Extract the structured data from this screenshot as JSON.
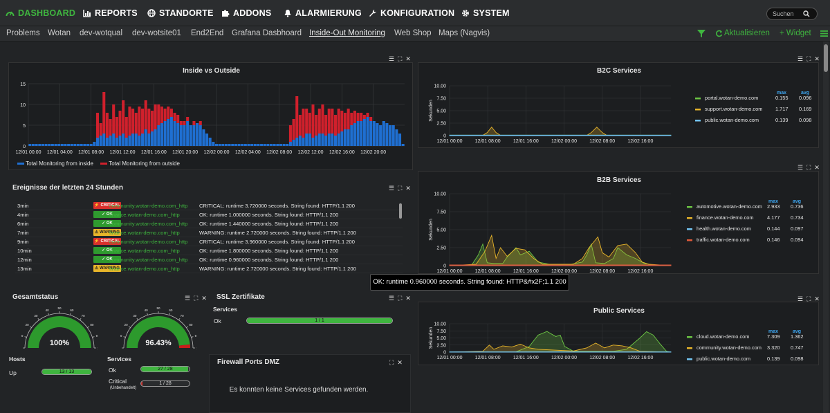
{
  "nav": {
    "items": [
      {
        "label": "DASHBOARD",
        "icon": "gauge-icon"
      },
      {
        "label": "REPORTS",
        "icon": "report-icon"
      },
      {
        "label": "STANDORTE",
        "icon": "globe-icon"
      },
      {
        "label": "ADDONS",
        "icon": "puzzle-icon"
      },
      {
        "label": "ALARMIERUNG",
        "icon": "bell-icon"
      },
      {
        "label": "KONFIGURATION",
        "icon": "wrench-icon"
      },
      {
        "label": "SYSTEM",
        "icon": "gear-icon"
      }
    ],
    "search_placeholder": "Suchen"
  },
  "subnav": {
    "tabs": [
      "Problems",
      "Wotan",
      "dev-wotqual",
      "dev-wotsite01",
      "End2End",
      "Grafana Dasbhoard",
      "Inside-Out Monitoring",
      "Web Shop",
      "Maps (Nagvis)"
    ],
    "active": "Inside-Out Monitoring",
    "refresh": "Aktualisieren",
    "widget": "+ Widget"
  },
  "inside_outside": {
    "title": "Inside vs Outside",
    "legend": [
      "Total Monitoring from inside",
      "Total Monitoring from outside"
    ],
    "colors": {
      "inside": "#1f6fd1",
      "outside": "#d0202c"
    }
  },
  "events": {
    "title": "Ereignisse der letzten 24 Stunden",
    "rows": [
      {
        "time": "3min",
        "state": "CRITICAL",
        "host": "community.wotan-demo.com_http",
        "msg": "CRITICAL: runtime 3.720000 seconds. String found: HTTP/1.1 200"
      },
      {
        "time": "4min",
        "state": "OK",
        "host": "finance.wotan-demo.com_http",
        "msg": "OK: runtime 1.000000 seconds. String found: HTTP/1.1 200"
      },
      {
        "time": "6min",
        "state": "OK",
        "host": "community.wotan-demo.com_http",
        "msg": "OK: runtime 1.440000 seconds. String found: HTTP/1.1 200"
      },
      {
        "time": "7min",
        "state": "WARNING",
        "host": "finance.wotan-demo.com_http",
        "msg": "WARNING: runtime 2.720000 seconds. String found: HTTP/1.1 200"
      },
      {
        "time": "9min",
        "state": "CRITICAL",
        "host": "community.wotan-demo.com_http",
        "msg": "CRITICAL: runtime 3.960000 seconds. String found: HTTP/1.1 200"
      },
      {
        "time": "10min",
        "state": "OK",
        "host": "finance.wotan-demo.com_http",
        "msg": "OK: runtime 1.800000 seconds. String found: HTTP/1.1 200"
      },
      {
        "time": "12min",
        "state": "OK",
        "host": "community.wotan-demo.com_http",
        "msg": "OK: runtime 0.960000 seconds. String found: HTTP/1.1 200"
      },
      {
        "time": "13min",
        "state": "WARNING",
        "host": "finance.wotan-demo.com_http",
        "msg": "WARNING: runtime 2.720000 seconds. String found: HTTP/1.1 200"
      }
    ],
    "tooltip": "OK: runtime 0.960000 seconds. String found: HTTP&#x2F;1.1 200"
  },
  "gesamtstatus": {
    "title": "Gesamtstatus",
    "hosts_gauge": {
      "value_label": "100%",
      "value": 100,
      "ticks": [
        "0",
        "10",
        "20",
        "30",
        "40",
        "50",
        "60",
        "70",
        "80",
        "90",
        "100"
      ]
    },
    "services_gauge": {
      "value_label": "96.43%",
      "value": 96.43,
      "ticks": [
        "0",
        "10",
        "20",
        "30",
        "40",
        "50",
        "60",
        "70",
        "80",
        "90",
        "100"
      ]
    },
    "hosts": {
      "heading": "Hosts",
      "up_label": "Up",
      "up_value": "13 / 13",
      "up_fraction": 1.0
    },
    "services": {
      "heading": "Services",
      "ok_label": "Ok",
      "ok_value": "27 / 28",
      "ok_fraction": 0.9643,
      "critical_label": "Critical",
      "critical_sub": "(Unbehandelt)",
      "critical_value": "1 / 28",
      "critical_fraction": 0.0357
    }
  },
  "ssl": {
    "title": "SSL Zertifikate",
    "heading": "Services",
    "ok_label": "Ok",
    "ok_value": "1 / 1",
    "ok_fraction": 1.0
  },
  "firewall": {
    "title": "Firewall Ports DMZ",
    "message": "Es konnten keine Services gefunden werden."
  },
  "chart_data": [
    {
      "type": "bar",
      "title": "Inside vs Outside",
      "ylim": [
        0,
        15
      ],
      "yticks": [
        "0",
        "5",
        "10",
        "15"
      ],
      "xticks": [
        "12/01 00:00",
        "12/01 04:00",
        "12/01 08:00",
        "12/01 12:00",
        "12/01 16:00",
        "12/01 20:00",
        "12/02 00:00",
        "12/02 04:00",
        "12/02 08:00",
        "12/02 12:00",
        "12/02 16:00",
        "12/02 20:00"
      ],
      "series": [
        {
          "name": "Total Monitoring from inside",
          "values": [
            0.5,
            0.5,
            0.5,
            0.5,
            0.5,
            0.5,
            0.5,
            0.5,
            0.5,
            0.5,
            0.5,
            0.5,
            0.5,
            0.5,
            0.5,
            0.5,
            0.5,
            0.5,
            0.5,
            0.5,
            1,
            2,
            2.5,
            3,
            2,
            2.5,
            3,
            2,
            2.5,
            3,
            2,
            2.5,
            3,
            3,
            2.5,
            3,
            4,
            3,
            3.5,
            4,
            5,
            5.5,
            6,
            6.5,
            7,
            6,
            5.5,
            5,
            5,
            6,
            5,
            5,
            5.5,
            5,
            4,
            3,
            2,
            1,
            0.5,
            0.5,
            0.5,
            0.5,
            0.5,
            0.5,
            0.5,
            0.5,
            0.5,
            0.5,
            0.5,
            0.5,
            0.5,
            0.5,
            0.5,
            0.5,
            0.5,
            0.5,
            0.5,
            0.5,
            0.5,
            0.5,
            0.5,
            1,
            1.5,
            2,
            2.5,
            2,
            3,
            3,
            2,
            2.5,
            3,
            3,
            2.5,
            3,
            3,
            2.5,
            3,
            3.5,
            4,
            4,
            5,
            5.5,
            6,
            6,
            6.5,
            7,
            6,
            6,
            5.5,
            5,
            6,
            5.5,
            5,
            5,
            4,
            3,
            0.5
          ]
        },
        {
          "name": "Total Monitoring from outside",
          "values": [
            0,
            0,
            0,
            0,
            0,
            0,
            0,
            0,
            0,
            0,
            0,
            0,
            0,
            0,
            0,
            0,
            0,
            0,
            0,
            0,
            0,
            6,
            3,
            10,
            6,
            4,
            7,
            5,
            6,
            8,
            5,
            7,
            6,
            5,
            7,
            6,
            7,
            6,
            5,
            6,
            5,
            4,
            3,
            3,
            2,
            2,
            2,
            1,
            1,
            1,
            0,
            1,
            0,
            1,
            0,
            0,
            0,
            0,
            0,
            0,
            0,
            0,
            0,
            0,
            0,
            0,
            0,
            0,
            0,
            0,
            0,
            0,
            0,
            0,
            0,
            0,
            0,
            0,
            0,
            0,
            0,
            4,
            5,
            10,
            5,
            7,
            6,
            5,
            8,
            5,
            6,
            7,
            5,
            6,
            6,
            5,
            6,
            5,
            4,
            5,
            3,
            3,
            2,
            2,
            1,
            1,
            1,
            0,
            0,
            0,
            0,
            0,
            0,
            0,
            0,
            0
          ]
        }
      ]
    },
    {
      "type": "line",
      "title": "B2C Services",
      "ylabel": "Sekunden",
      "ylim": [
        0,
        10
      ],
      "yticks": [
        "0",
        "2.50",
        "5.00",
        "7.50",
        "10.00"
      ],
      "xticks": [
        "12/01 00:00",
        "12/01 08:00",
        "12/01 16:00",
        "12/02 00:00",
        "12/02 08:00",
        "12/02 16:00"
      ],
      "legend_headers": [
        "max",
        "avg"
      ],
      "series": [
        {
          "name": "portal.wotan-demo.com",
          "color": "#6cc644",
          "max": "0.155",
          "avg": "0.096",
          "spikes": []
        },
        {
          "name": "support.wotan-demo.com",
          "color": "#e8b52a",
          "max": "1.717",
          "avg": "0.169",
          "spikes": [
            [
              0.18,
              1.7
            ],
            [
              0.66,
              1.7
            ]
          ]
        },
        {
          "name": "public.wotan-demo.com",
          "color": "#73c4f0",
          "max": "0.139",
          "avg": "0.098",
          "spikes": []
        }
      ]
    },
    {
      "type": "line",
      "title": "B2B Services",
      "ylabel": "Sekunden",
      "ylim": [
        0,
        10
      ],
      "yticks": [
        "0",
        "2.50",
        "5.00",
        "7.50",
        "10.00"
      ],
      "xticks": [
        "12/01 00:00",
        "12/01 08:00",
        "12/01 16:00",
        "12/02 00:00",
        "12/02 08:00",
        "12/02 16:00"
      ],
      "legend_headers": [
        "max",
        "avg"
      ],
      "series": [
        {
          "name": "automotive.wotan-demo.com",
          "color": "#6cc644",
          "max": "2.933",
          "avg": "0.736",
          "spikes": []
        },
        {
          "name": "finance.wotan-demo.com",
          "color": "#e8b52a",
          "max": "4.177",
          "avg": "0.734",
          "spikes": []
        },
        {
          "name": "health.wotan-demo.com",
          "color": "#73c4f0",
          "max": "0.144",
          "avg": "0.097",
          "spikes": []
        },
        {
          "name": "traffic.wotan-demo.com",
          "color": "#e05a3a",
          "max": "0.146",
          "avg": "0.094",
          "spikes": []
        }
      ]
    },
    {
      "type": "line",
      "title": "Public Services",
      "ylabel": "Sekunden",
      "ylim": [
        0,
        10
      ],
      "yticks": [
        "0",
        "2.50",
        "5.00",
        "7.50",
        "10.00"
      ],
      "xticks": [
        "12/01 00:00",
        "12/01 08:00",
        "12/01 16:00",
        "12/02 00:00",
        "12/02 08:00",
        "12/02 16:00"
      ],
      "legend_headers": [
        "max",
        "avg"
      ],
      "series": [
        {
          "name": "cloud.wotan-demo.com",
          "color": "#6cc644",
          "max": "7.309",
          "avg": "1.362",
          "spikes": []
        },
        {
          "name": "community.wotan-demo.com",
          "color": "#e8b52a",
          "max": "3.320",
          "avg": "0.747",
          "spikes": []
        },
        {
          "name": "public.wotan-demo.com",
          "color": "#73c4f0",
          "max": "0.139",
          "avg": "0.098",
          "spikes": []
        }
      ]
    }
  ]
}
